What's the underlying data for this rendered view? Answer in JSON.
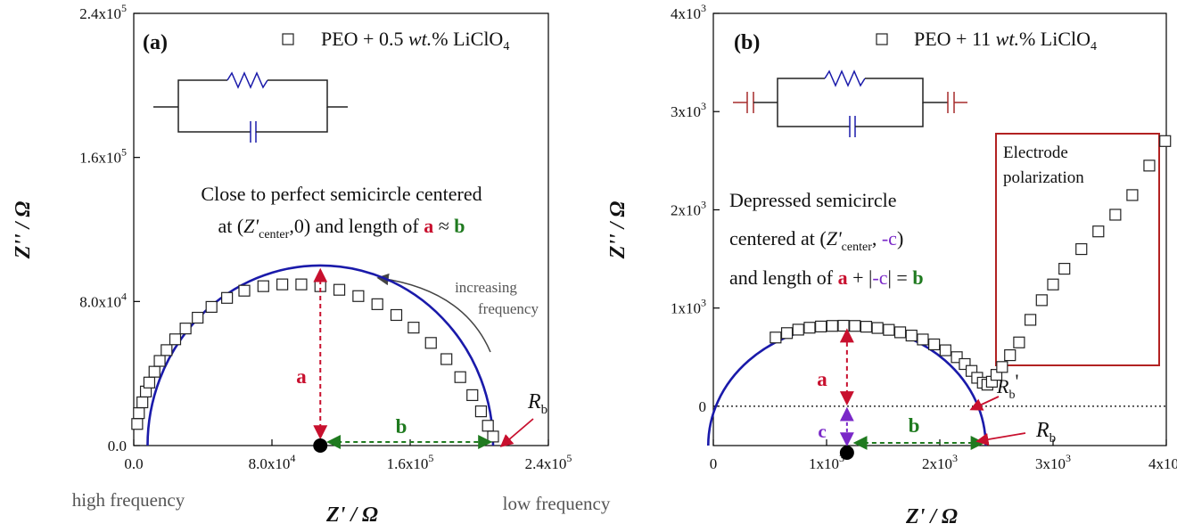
{
  "chart_data": [
    {
      "type": "scatter",
      "panel_label": "(a)",
      "legend": "PEO + 0.5 wt.% LiClO4",
      "legend_parts": {
        "pre": "PEO + 0.5 ",
        "wt": "wt.",
        "post": "% LiClO",
        "sub": "4"
      },
      "xlabel": "Z' / Ω",
      "ylabel": "Z'' / Ω",
      "xlim": [
        0,
        240000
      ],
      "ylim": [
        0,
        240000
      ],
      "xticks": [
        0,
        80000,
        160000,
        240000
      ],
      "xtick_labels": [
        "0.0",
        "8.0x10",
        "1.6x10",
        "2.4x10"
      ],
      "xtick_exps": [
        "",
        "4",
        "5",
        "5"
      ],
      "yticks": [
        0,
        80000,
        160000,
        240000
      ],
      "ytick_labels": [
        "0.0",
        "8.0x10",
        "1.6x10",
        "2.4x10"
      ],
      "ytick_exps": [
        "",
        "4",
        "5",
        "5"
      ],
      "series": [
        {
          "name": "PEO + 0.5 wt.% LiClO4",
          "marker": "open-square",
          "x": [
            2000,
            3000,
            5000,
            7000,
            9000,
            12000,
            15000,
            19000,
            24000,
            30000,
            37000,
            45000,
            54000,
            64000,
            75000,
            86000,
            97000,
            108000,
            119000,
            130000,
            141000,
            152000,
            162000,
            172000,
            181000,
            189000,
            196000,
            201000,
            205000,
            208000
          ],
          "y": [
            12000,
            18000,
            24000,
            30000,
            35000,
            41000,
            47000,
            53000,
            59000,
            65000,
            71000,
            77000,
            82000,
            86000,
            88500,
            89500,
            89500,
            88500,
            86500,
            83000,
            78500,
            72500,
            65500,
            57000,
            48000,
            38000,
            28000,
            19000,
            11000,
            5000
          ]
        },
        {
          "name": "semicircle fit",
          "type": "line",
          "center": [
            108000,
            0
          ],
          "radius": 100000
        }
      ],
      "circuit": "parallel resistor-capacitor",
      "annotations": {
        "text_line1": "Close to perfect semicircle centered",
        "text_line2_pre": "at (",
        "text_line2_z": "Z'",
        "text_line2_sub": "center",
        "text_line2_mid": ",0) and length of ",
        "a": "a",
        "approx": " ≈ ",
        "b": "b",
        "arrow_label_1": "increasing",
        "arrow_label_2": "frequency",
        "rb": "R",
        "rb_sub": "b",
        "high_freq": "high frequency",
        "low_freq": "low frequency"
      },
      "colors": {
        "fit": "#1a1aaa",
        "a": "#c8102e",
        "b": "#1f7a1f"
      }
    },
    {
      "type": "scatter",
      "panel_label": "(b)",
      "legend": "PEO + 11 wt.% LiClO4",
      "legend_parts": {
        "pre": "PEO + 11 ",
        "wt": "wt.",
        "post": "% LiClO",
        "sub": "4"
      },
      "xlabel": "Z' / Ω",
      "ylabel": "Z'' / Ω",
      "xlim": [
        0,
        4000
      ],
      "ylim": [
        -400,
        4000
      ],
      "xticks": [
        0,
        1000,
        2000,
        3000,
        4000
      ],
      "xtick_labels": [
        "0",
        "1x10",
        "2x10",
        "3x10",
        "4x10"
      ],
      "xtick_exps": [
        "",
        "3",
        "3",
        "3",
        "3"
      ],
      "yticks": [
        0,
        1000,
        2000,
        3000,
        4000
      ],
      "ytick_labels": [
        "0",
        "1x10",
        "2x10",
        "3x10",
        "4x10"
      ],
      "ytick_exps": [
        "",
        "3",
        "3",
        "3",
        "3"
      ],
      "series": [
        {
          "name": "PEO + 11 wt.% LiClO4",
          "marker": "open-square",
          "x": [
            550,
            650,
            750,
            850,
            950,
            1050,
            1150,
            1250,
            1350,
            1450,
            1550,
            1650,
            1750,
            1850,
            1950,
            2050,
            2150,
            2220,
            2280,
            2330,
            2380,
            2420,
            2460,
            2500,
            2550,
            2620,
            2700,
            2800,
            2900,
            3000,
            3100,
            3250,
            3400,
            3550,
            3700,
            3850,
            3990
          ],
          "y": [
            700,
            745,
            780,
            800,
            812,
            818,
            820,
            818,
            810,
            797,
            778,
            753,
            720,
            680,
            630,
            570,
            500,
            430,
            360,
            290,
            240,
            220,
            250,
            320,
            400,
            520,
            650,
            880,
            1080,
            1240,
            1400,
            1600,
            1780,
            1950,
            2150,
            2450,
            2700
          ]
        },
        {
          "name": "semicircle fit",
          "type": "line",
          "center": [
            1180,
            -400
          ],
          "radius": 1225
        }
      ],
      "circuit": "series capacitor – parallel RC – series capacitor",
      "annotations": {
        "text_line1": "Depressed semicircle",
        "text_line2_pre": "centered at (",
        "text_line2_z": "Z'",
        "text_line2_sub": "center",
        "text_line2_mid": ", ",
        "c_neg": "-c",
        "text_line2_end": ")",
        "text_line3_pre": "and length of ",
        "a": "a",
        "plus": " + |",
        "c_abs": "-c",
        "eq": "| = ",
        "b": "b",
        "c": "c",
        "electrode_1": "Electrode",
        "electrode_2": "polarization",
        "rb": "R",
        "rb_sub": "b",
        "rb_prime": "'"
      },
      "colors": {
        "fit": "#1a1aaa",
        "a": "#c8102e",
        "b": "#1f7a1f",
        "c": "#7a28c8",
        "box": "#b22222",
        "capacitor": "#a52a2a"
      }
    }
  ]
}
